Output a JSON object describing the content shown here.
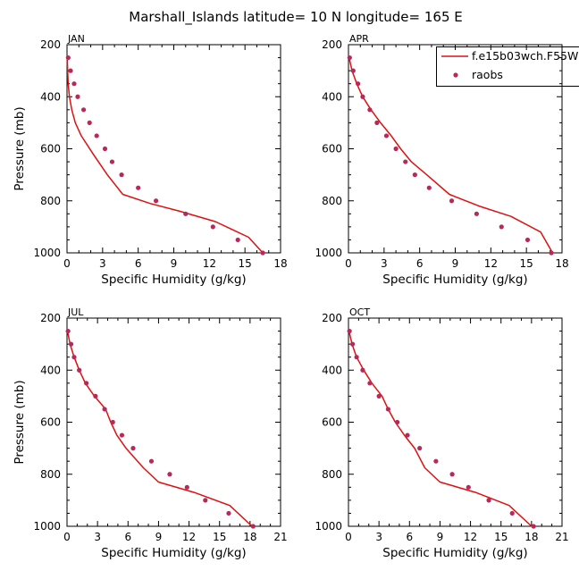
{
  "title": "Marshall_Islands  latitude= 10 N longitude= 165 E",
  "legend": {
    "model_label": "f.e15b03wch.F55W",
    "obs_label": "raobs",
    "model_color": "#e01010",
    "obs_color": "#b8285a"
  },
  "chart_data": [
    {
      "type": "line",
      "panel": "JAN",
      "xlabel": "Specific Humidity (g/kg)",
      "ylabel": "Pressure (mb)",
      "xlim": [
        0,
        18
      ],
      "ylim": [
        1000,
        200
      ],
      "xticks": [
        0,
        3,
        6,
        9,
        12,
        15,
        18
      ],
      "yticks": [
        200,
        400,
        600,
        800,
        1000
      ],
      "model": {
        "x": [
          0.02,
          0.05,
          0.1,
          0.2,
          0.4,
          0.7,
          1.2,
          2.2,
          3.4,
          4.7,
          7.0,
          9.5,
          12.5,
          15.3,
          16.5
        ],
        "y": [
          250,
          300,
          350,
          400,
          450,
          500,
          550,
          620,
          700,
          775,
          810,
          840,
          880,
          940,
          1000
        ]
      },
      "obs": {
        "x": [
          0.1,
          0.3,
          0.6,
          0.9,
          1.4,
          1.9,
          2.5,
          3.2,
          3.8,
          4.6,
          6.0,
          7.5,
          10.0,
          12.3,
          14.4,
          16.5
        ],
        "y": [
          250,
          300,
          350,
          400,
          450,
          500,
          550,
          600,
          650,
          700,
          750,
          800,
          850,
          900,
          950,
          1000
        ]
      }
    },
    {
      "type": "line",
      "panel": "APR",
      "xlabel": "Specific Humidity (g/kg)",
      "xlim": [
        0,
        18
      ],
      "ylim": [
        1000,
        200
      ],
      "xticks": [
        0,
        3,
        6,
        9,
        12,
        15,
        18
      ],
      "yticks": [
        200,
        400,
        600,
        800,
        1000
      ],
      "model": {
        "x": [
          0.05,
          0.3,
          0.7,
          1.2,
          1.9,
          2.7,
          3.6,
          4.4,
          5.3,
          6.6,
          8.5,
          11.0,
          13.7,
          16.2,
          17.2
        ],
        "y": [
          250,
          300,
          350,
          400,
          450,
          500,
          550,
          600,
          650,
          700,
          775,
          820,
          860,
          920,
          1000
        ]
      },
      "obs": {
        "x": [
          0.1,
          0.4,
          0.8,
          1.2,
          1.8,
          2.4,
          3.2,
          4.0,
          4.8,
          5.6,
          6.8,
          8.7,
          10.8,
          12.9,
          15.1,
          17.1
        ],
        "y": [
          250,
          300,
          350,
          400,
          450,
          500,
          550,
          600,
          650,
          700,
          750,
          800,
          850,
          900,
          950,
          1000
        ]
      }
    },
    {
      "type": "line",
      "panel": "JUL",
      "xlabel": "Specific Humidity (g/kg)",
      "ylabel": "Pressure (mb)",
      "xlim": [
        0,
        21
      ],
      "ylim": [
        1000,
        200
      ],
      "xticks": [
        0,
        3,
        6,
        9,
        12,
        15,
        18,
        21
      ],
      "yticks": [
        200,
        400,
        600,
        800,
        1000
      ],
      "model": {
        "x": [
          0.05,
          0.3,
          0.7,
          1.2,
          1.8,
          2.7,
          3.8,
          4.3,
          4.9,
          5.8,
          7.5,
          9.0,
          12.5,
          16.0,
          18.2
        ],
        "y": [
          250,
          300,
          350,
          400,
          450,
          500,
          550,
          600,
          650,
          700,
          775,
          830,
          870,
          920,
          1000
        ]
      },
      "obs": {
        "x": [
          0.1,
          0.4,
          0.7,
          1.2,
          1.9,
          2.8,
          3.7,
          4.5,
          5.4,
          6.5,
          8.3,
          10.1,
          11.8,
          13.6,
          15.9,
          18.3
        ],
        "y": [
          250,
          300,
          350,
          400,
          450,
          500,
          550,
          600,
          650,
          700,
          750,
          800,
          850,
          900,
          950,
          1000
        ]
      }
    },
    {
      "type": "line",
      "panel": "OCT",
      "xlabel": "Specific Humidity (g/kg)",
      "xlim": [
        0,
        21
      ],
      "ylim": [
        1000,
        200
      ],
      "xticks": [
        0,
        3,
        6,
        9,
        12,
        15,
        18,
        21
      ],
      "yticks": [
        200,
        400,
        600,
        800,
        1000
      ],
      "model": {
        "x": [
          0.05,
          0.35,
          0.8,
          1.5,
          2.3,
          3.3,
          3.9,
          4.6,
          5.5,
          6.5,
          7.5,
          9.0,
          12.5,
          15.8,
          18.0
        ],
        "y": [
          250,
          300,
          350,
          400,
          450,
          500,
          550,
          600,
          650,
          700,
          775,
          830,
          870,
          920,
          1000
        ]
      },
      "obs": {
        "x": [
          0.1,
          0.4,
          0.8,
          1.4,
          2.1,
          3.0,
          3.9,
          4.8,
          5.8,
          7.0,
          8.6,
          10.2,
          11.8,
          13.8,
          16.1,
          18.2
        ],
        "y": [
          250,
          300,
          350,
          400,
          450,
          500,
          550,
          600,
          650,
          700,
          750,
          800,
          850,
          900,
          950,
          1000
        ]
      }
    }
  ]
}
